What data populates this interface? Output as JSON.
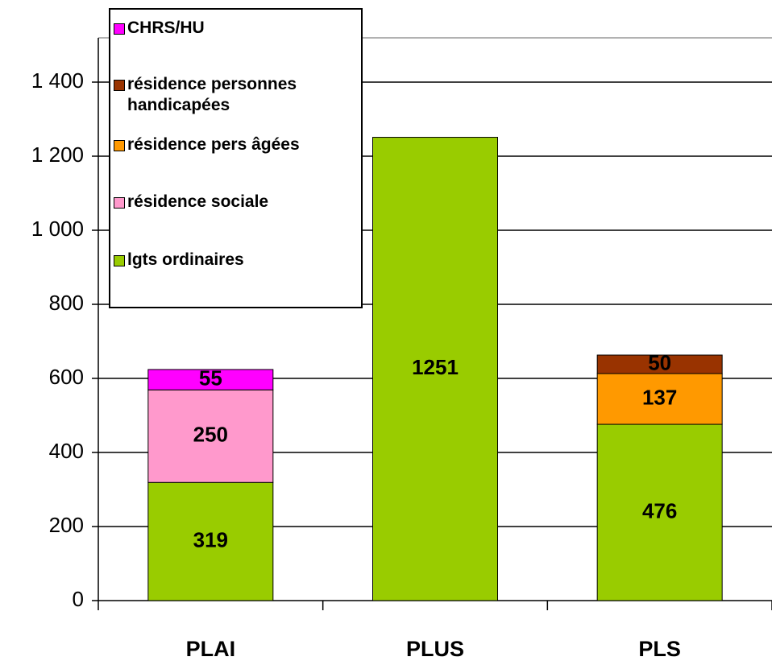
{
  "chart_data": {
    "type": "bar",
    "stacked": true,
    "categories": [
      "PLAI",
      "PLUS",
      "PLS"
    ],
    "series": [
      {
        "name": "lgts ordinaires",
        "color": "#99cc00",
        "values": [
          319,
          1251,
          476
        ]
      },
      {
        "name": "résidence sociale",
        "color": "#ff99cc",
        "values": [
          250,
          null,
          null
        ]
      },
      {
        "name": "résidence pers âgées",
        "color": "#ff9900",
        "values": [
          null,
          null,
          137
        ]
      },
      {
        "name": "résidence personnes handicapées",
        "color": "#993300",
        "values": [
          null,
          null,
          50
        ]
      },
      {
        "name": "CHRS/HU",
        "color": "#ff00ff",
        "values": [
          55,
          null,
          null
        ]
      }
    ],
    "ylim": [
      0,
      1500
    ],
    "yticks": [
      0,
      200,
      400,
      600,
      800,
      {
        "value": 1000,
        "label": "1 000"
      },
      {
        "value": 1200,
        "label": "1 200"
      },
      {
        "value": 1400,
        "label": "1 400"
      }
    ],
    "grid": true,
    "legend": "upper left"
  }
}
